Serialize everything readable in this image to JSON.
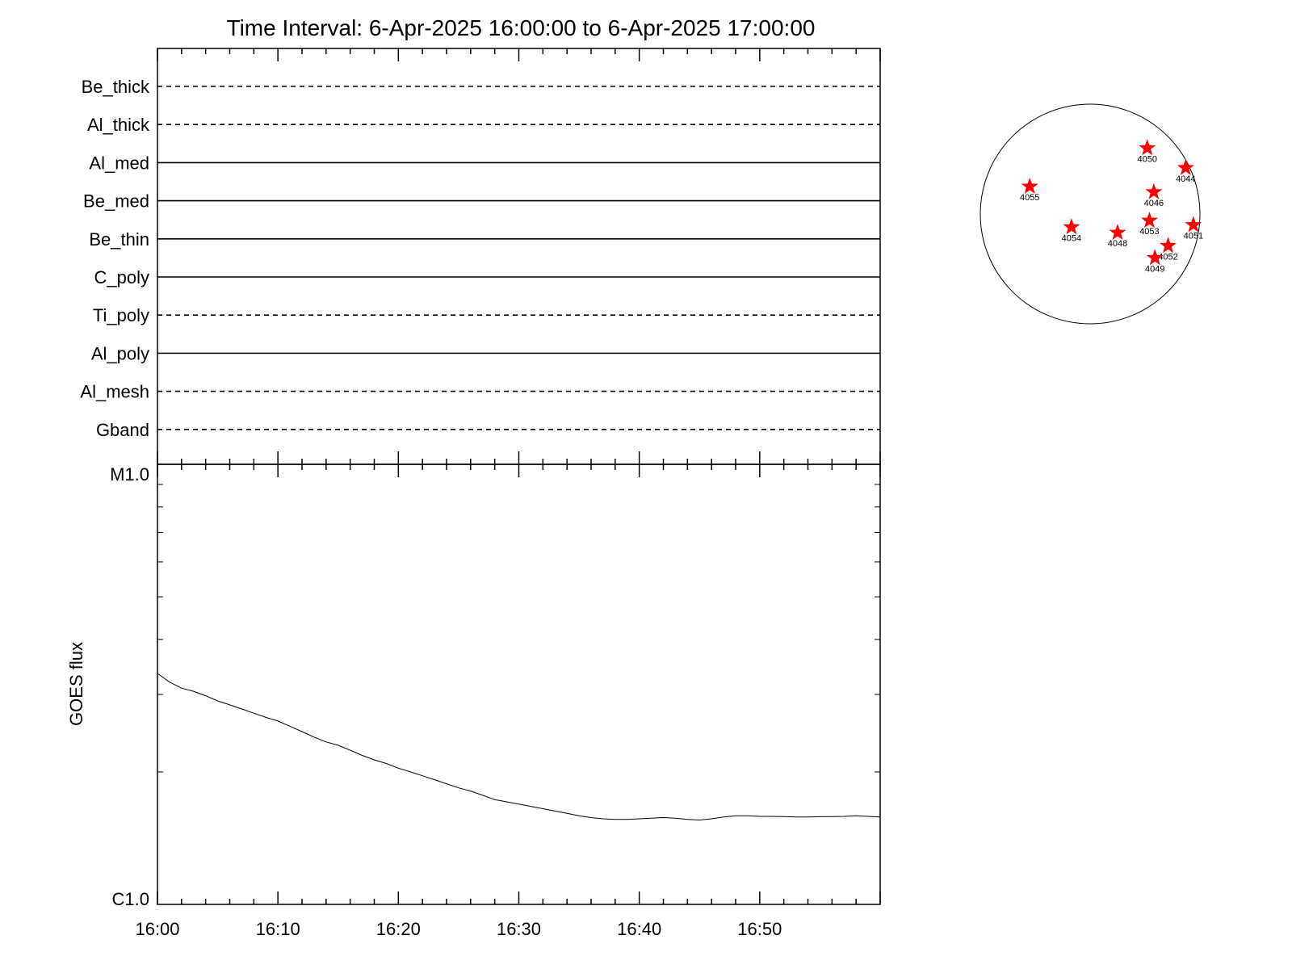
{
  "chart_data": [
    {
      "type": "line",
      "title": "Time Interval:  6-Apr-2025 16:00:00 to  6-Apr-2025 17:00:00",
      "filters": [
        {
          "name": "Be_thick",
          "style": "dashed"
        },
        {
          "name": "Al_thick",
          "style": "dashed"
        },
        {
          "name": "Al_med",
          "style": "solid"
        },
        {
          "name": "Be_med",
          "style": "solid"
        },
        {
          "name": "Be_thin",
          "style": "solid"
        },
        {
          "name": "C_poly",
          "style": "solid"
        },
        {
          "name": "Ti_poly",
          "style": "dashed"
        },
        {
          "name": "Al_poly",
          "style": "solid"
        },
        {
          "name": "Al_mesh",
          "style": "dashed"
        },
        {
          "name": "Gband",
          "style": "dashed"
        }
      ],
      "x_tick_labels": [
        "16:00",
        "16:10",
        "16:20",
        "16:30",
        "16:40",
        "16:50"
      ],
      "x_range_minutes": [
        0,
        60
      ]
    },
    {
      "type": "line",
      "ylabel": "GOES flux",
      "y_scale": "log",
      "y_tick_labels": [
        "M1.0",
        "C1.0"
      ],
      "y_range_wm2": [
        1e-06,
        1e-05
      ],
      "x_tick_labels": [
        "16:00",
        "16:10",
        "16:20",
        "16:30",
        "16:40",
        "16:50"
      ],
      "x_range_minutes": [
        0,
        60
      ],
      "line_color": "#000000",
      "series": [
        {
          "x": [
            0,
            1,
            2,
            3,
            4,
            5,
            6,
            7,
            8,
            9,
            10,
            11,
            12,
            13,
            14,
            15,
            16,
            17,
            18,
            19,
            20,
            21,
            22,
            23,
            24,
            25,
            26,
            27,
            28,
            29,
            30,
            31,
            32,
            33,
            34,
            35,
            36,
            37,
            38,
            39,
            40,
            41,
            42,
            43,
            44,
            45,
            46,
            47,
            48,
            49,
            50,
            51,
            52,
            53,
            54,
            55,
            56,
            57,
            58,
            59,
            60
          ],
          "y": [
            3.35e-06,
            3.2e-06,
            3.1e-06,
            3.05e-06,
            2.98e-06,
            2.9e-06,
            2.84e-06,
            2.78e-06,
            2.72e-06,
            2.66e-06,
            2.61e-06,
            2.54e-06,
            2.47e-06,
            2.4e-06,
            2.34e-06,
            2.3e-06,
            2.24e-06,
            2.18e-06,
            2.13e-06,
            2.09e-06,
            2.04e-06,
            2e-06,
            1.96e-06,
            1.92e-06,
            1.88e-06,
            1.84e-06,
            1.81e-06,
            1.77e-06,
            1.73e-06,
            1.71e-06,
            1.69e-06,
            1.67e-06,
            1.65e-06,
            1.63e-06,
            1.61e-06,
            1.59e-06,
            1.575e-06,
            1.565e-06,
            1.56e-06,
            1.56e-06,
            1.565e-06,
            1.57e-06,
            1.575e-06,
            1.57e-06,
            1.56e-06,
            1.555e-06,
            1.565e-06,
            1.58e-06,
            1.59e-06,
            1.59e-06,
            1.585e-06,
            1.585e-06,
            1.583e-06,
            1.58e-06,
            1.58e-06,
            1.582e-06,
            1.583e-06,
            1.585e-06,
            1.59e-06,
            1.585e-06,
            1.58e-06
          ]
        }
      ]
    },
    {
      "type": "scatter",
      "description_units": "heliographic disk, normalized to radius 1",
      "marker_color": "#ff0000",
      "points": [
        {
          "label": "4050",
          "x": 0.52,
          "y": 0.6
        },
        {
          "label": "4044",
          "x": 0.87,
          "y": 0.42
        },
        {
          "label": "4055",
          "x": -0.55,
          "y": 0.25
        },
        {
          "label": "4046",
          "x": 0.58,
          "y": 0.2
        },
        {
          "label": "4054",
          "x": -0.17,
          "y": -0.12
        },
        {
          "label": "4048",
          "x": 0.25,
          "y": -0.17
        },
        {
          "label": "4053",
          "x": 0.54,
          "y": -0.06
        },
        {
          "label": "4051",
          "x": 0.94,
          "y": -0.1
        },
        {
          "label": "4052",
          "x": 0.71,
          "y": -0.29
        },
        {
          "label": "4049",
          "x": 0.59,
          "y": -0.4
        }
      ]
    }
  ]
}
